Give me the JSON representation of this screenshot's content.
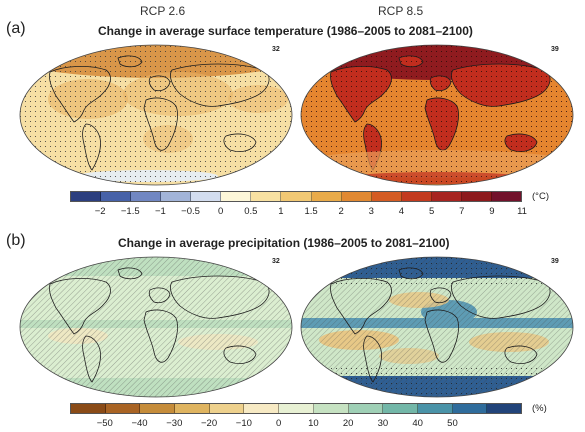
{
  "columns": {
    "left": "RCP 2.6",
    "right": "RCP 8.5"
  },
  "panel_a": {
    "label": "(a)",
    "title": "Change in average surface temperature (1986–2005 to 2081–2100)",
    "left_count": "32",
    "right_count": "39",
    "colors": [
      "#2c3f7f",
      "#4762a8",
      "#7187c2",
      "#a2b4d8",
      "#d3ddef",
      "#fdf7d9",
      "#f8e1a2",
      "#f1c874",
      "#e9ab4a",
      "#e18932",
      "#d45c23",
      "#c33a1e",
      "#a72420",
      "#8d1a1c",
      "#72122b"
    ],
    "ticks": [
      "−2",
      "−1.5",
      "−1",
      "−0.5",
      "0",
      "0.5",
      "1",
      "1.5",
      "2",
      "3",
      "4",
      "5",
      "7",
      "9",
      "11"
    ],
    "unit": "(°C)"
  },
  "panel_b": {
    "label": "(b)",
    "title": "Change in average precipitation (1986–2005 to 2081–2100)",
    "left_count": "32",
    "right_count": "39",
    "colors": [
      "#8a4b17",
      "#a96424",
      "#c58c3a",
      "#dfb460",
      "#eed18d",
      "#f7eac4",
      "#e8f1d4",
      "#c6e2c2",
      "#9fd0b6",
      "#73b7a8",
      "#4a93a8",
      "#2f6c9c",
      "#22447a"
    ],
    "ticks": [
      "−50",
      "−40",
      "−30",
      "−20",
      "−10",
      "0",
      "10",
      "20",
      "30",
      "40",
      "50"
    ],
    "unit": "(%)"
  },
  "map_colors": {
    "temp_low_base": "#f6dfa4",
    "temp_low_warm": "#e9b466",
    "temp_low_arctic": "#d48a3a",
    "temp_high_base": "#e5852f",
    "temp_high_land": "#c12d1e",
    "temp_high_arctic": "#8f1b1f",
    "precip_low_base": "#dbeed0",
    "precip_low_wet": "#bfe0c0",
    "precip_low_dry": "#f3e6bf",
    "precip_high_base": "#cfe7c8",
    "precip_high_wet": "#5e9cb4",
    "precip_high_polar": "#2f5f93",
    "precip_high_dry": "#e7c887",
    "coast": "#1d1d1d"
  }
}
